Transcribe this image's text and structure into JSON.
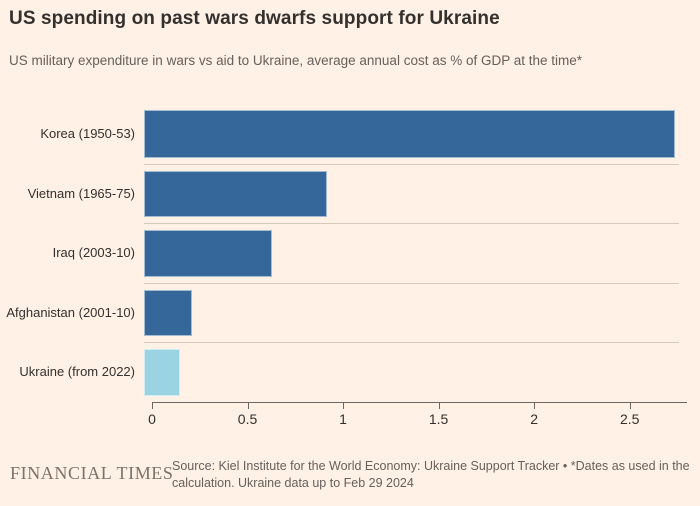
{
  "header": {
    "title": "US spending on past wars dwarfs support for Ukraine",
    "subtitle": "US military expenditure in wars vs aid to Ukraine, average annual cost as % of GDP at the time*"
  },
  "chart_data": {
    "type": "bar",
    "orientation": "horizontal",
    "title": "US spending on past wars dwarfs support for Ukraine",
    "subtitle": "US military expenditure in wars vs aid to Ukraine, average annual cost as % of GDP at the time*",
    "unit": "% of GDP",
    "categories": [
      "Korea (1950-53)",
      "Vietnam (1965-75)",
      "Iraq (2003-10)",
      "Afghanistan (2001-10)",
      "Ukraine (from 2022)"
    ],
    "values": [
      2.78,
      0.96,
      0.67,
      0.25,
      0.19
    ],
    "bar_colors": [
      "#35679A",
      "#35679A",
      "#35679A",
      "#35679A",
      "#9AD4E3"
    ],
    "x_ticks": [
      0,
      0.5,
      1,
      1.5,
      2,
      2.5
    ],
    "x_tick_labels": [
      "0",
      "0.5",
      "1",
      "1.5",
      "2",
      "2.5"
    ],
    "xlim": [
      0,
      2.8
    ],
    "grid": false,
    "legend": "none"
  },
  "colors": {
    "background": "#FFF1E5",
    "bar_primary": "#35679A",
    "bar_highlight": "#9AD4E3",
    "separator": "#D5CABD",
    "axis": "#6E6761",
    "text_dark": "#33302E",
    "text_muted": "#66605C"
  },
  "footer": {
    "brand": "FINANCIAL TIMES",
    "source": "Source: Kiel Institute for the World Economy: Ukraine Support Tracker • *Dates as used in the calculation. Ukraine data up to Feb 29 2024"
  }
}
